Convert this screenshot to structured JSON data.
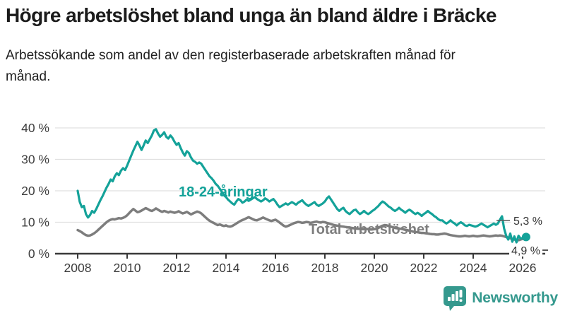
{
  "header": {
    "title": "Högre arbetslöshet bland unga än bland äldre i Bräcke",
    "subtitle": "Arbetssökande som andel av den registerbaserade arbetskraften månad för månad."
  },
  "branding": {
    "name": "Newsworthy",
    "logo_icon": "bar-chart-speech-bubble",
    "color": "#35998e"
  },
  "chart_data": {
    "type": "line",
    "title": "Högre arbetslöshet bland unga än bland äldre i Bräcke",
    "subtitle": "Arbetssökande som andel av den registerbaserade arbetskraften månad för månad.",
    "x_unit": "month",
    "x_start": "2008-01",
    "x_end": "2026-02",
    "x_ticks": [
      "2008",
      "2010",
      "2012",
      "2014",
      "2016",
      "2018",
      "2020",
      "2022",
      "2024",
      "2026"
    ],
    "y_tick_labels_top_down": [
      "40 %",
      "30 %",
      "20 %",
      "10 %",
      "0 %"
    ],
    "ylim": [
      0,
      42
    ],
    "grid": true,
    "legend_position": "inline-labels",
    "series": [
      {
        "name": "18-24-åringar",
        "color": "#14a299",
        "end_label": "5,3 %",
        "end_value": 5.3,
        "values": [
          20.0,
          16.5,
          14.8,
          15.2,
          12.6,
          11.5,
          12.3,
          13.6,
          13.0,
          14.2,
          15.6,
          17.0,
          18.2,
          19.6,
          21.0,
          22.2,
          23.6,
          23.0,
          24.6,
          25.6,
          25.0,
          26.4,
          27.2,
          26.6,
          28.0,
          29.6,
          31.2,
          32.8,
          34.2,
          35.6,
          34.4,
          33.0,
          34.4,
          36.0,
          35.2,
          36.4,
          37.6,
          39.2,
          39.6,
          38.2,
          37.2,
          37.8,
          38.6,
          37.2,
          36.6,
          37.6,
          36.8,
          35.6,
          34.6,
          35.2,
          33.6,
          32.2,
          31.2,
          32.6,
          32.0,
          30.6,
          29.6,
          29.2,
          28.6,
          29.0,
          28.6,
          27.6,
          26.6,
          25.6,
          24.6,
          24.0,
          23.2,
          22.2,
          21.6,
          20.6,
          19.6,
          18.6,
          18.0,
          17.2,
          16.6,
          16.0,
          15.6,
          16.6,
          17.4,
          17.0,
          16.2,
          16.6,
          17.2,
          16.8,
          17.2,
          17.6,
          18.0,
          17.4,
          17.0,
          16.6,
          17.0,
          17.6,
          17.2,
          16.6,
          17.0,
          17.4,
          16.6,
          15.6,
          14.8,
          15.2,
          15.6,
          16.0,
          15.6,
          16.0,
          16.4,
          16.0,
          15.6,
          16.2,
          16.6,
          17.0,
          16.2,
          15.6,
          15.2,
          15.6,
          16.0,
          16.4,
          15.6,
          15.2,
          15.6,
          16.0,
          16.6,
          17.6,
          18.2,
          17.2,
          16.2,
          15.2,
          14.2,
          13.6,
          14.2,
          14.6,
          13.6,
          13.0,
          12.6,
          13.2,
          13.8,
          14.0,
          13.2,
          12.6,
          13.0,
          13.6,
          13.0,
          12.6,
          13.0,
          13.6,
          14.0,
          14.6,
          15.2,
          16.0,
          16.6,
          16.2,
          15.6,
          15.0,
          14.6,
          14.0,
          13.6,
          14.0,
          14.6,
          14.0,
          13.6,
          13.0,
          13.6,
          14.0,
          13.6,
          13.0,
          12.6,
          13.0,
          12.6,
          12.0,
          12.6,
          13.0,
          13.6,
          13.0,
          12.6,
          12.0,
          11.6,
          11.0,
          10.6,
          10.6,
          10.0,
          9.6,
          10.0,
          10.6,
          10.0,
          9.6,
          9.0,
          9.6,
          10.0,
          9.6,
          9.0,
          8.8,
          9.2,
          9.0,
          8.8,
          8.6,
          8.8,
          9.2,
          9.6,
          9.2,
          8.8,
          8.4,
          8.8,
          9.2,
          9.6,
          9.2,
          9.6,
          10.8,
          11.9,
          8.0,
          5.7,
          4.5,
          6.4,
          3.8,
          5.5,
          3.6,
          5.7,
          4.8,
          5.0,
          5.3
        ]
      },
      {
        "name": "Total arbetslöshet",
        "color": "#7d7d7d",
        "end_label": "4,9 %",
        "end_value": 4.9,
        "values": [
          7.5,
          7.2,
          6.8,
          6.3,
          5.9,
          5.7,
          5.8,
          6.1,
          6.5,
          7.0,
          7.6,
          8.2,
          8.8,
          9.4,
          10.0,
          10.5,
          10.8,
          11.0,
          10.9,
          11.1,
          11.3,
          11.2,
          11.4,
          11.7,
          12.2,
          12.9,
          13.6,
          14.2,
          13.7,
          13.2,
          13.4,
          13.7,
          14.1,
          14.5,
          14.2,
          13.8,
          13.6,
          13.9,
          14.4,
          14.0,
          13.6,
          13.3,
          13.6,
          13.4,
          13.1,
          13.4,
          13.2,
          13.0,
          13.2,
          13.5,
          13.1,
          12.8,
          13.0,
          13.3,
          12.9,
          12.5,
          12.8,
          13.1,
          13.4,
          13.2,
          12.8,
          12.2,
          11.6,
          11.0,
          10.5,
          10.1,
          9.8,
          9.4,
          9.1,
          9.3,
          9.0,
          8.8,
          9.0,
          8.7,
          8.6,
          8.8,
          9.2,
          9.6,
          10.0,
          10.4,
          10.7,
          11.0,
          11.3,
          11.6,
          11.3,
          11.0,
          10.7,
          10.6,
          10.9,
          11.2,
          11.5,
          11.2,
          10.9,
          10.6,
          10.4,
          10.6,
          10.8,
          10.4,
          9.9,
          9.4,
          8.9,
          8.6,
          8.8,
          9.1,
          9.4,
          9.7,
          9.9,
          10.1,
          10.0,
          9.8,
          9.9,
          10.1,
          10.0,
          9.8,
          9.9,
          10.1,
          10.2,
          10.0,
          9.9,
          10.1,
          10.0,
          9.8,
          9.6,
          9.4,
          9.2,
          9.0,
          8.9,
          8.8,
          8.7,
          8.6,
          8.5,
          8.4,
          8.3,
          8.2,
          8.1,
          8.0,
          7.9,
          7.9,
          7.8,
          7.8,
          7.9,
          7.8,
          7.7,
          7.7,
          7.8,
          7.9,
          8.2,
          8.6,
          8.9,
          9.1,
          9.0,
          8.8,
          8.6,
          8.4,
          8.2,
          8.1,
          8.0,
          7.9,
          7.8,
          7.6,
          7.5,
          7.3,
          7.2,
          7.0,
          6.9,
          6.8,
          6.7,
          6.6,
          6.6,
          6.5,
          6.4,
          6.3,
          6.2,
          6.2,
          6.1,
          6.1,
          6.2,
          6.3,
          6.4,
          6.3,
          6.1,
          5.9,
          5.8,
          5.7,
          5.6,
          5.5,
          5.5,
          5.6,
          5.7,
          5.6,
          5.5,
          5.6,
          5.7,
          5.6,
          5.5,
          5.6,
          5.7,
          5.8,
          5.7,
          5.6,
          5.5,
          5.6,
          5.7,
          5.8,
          5.7,
          5.8,
          5.7,
          5.5,
          5.3,
          5.1,
          4.9,
          4.7,
          4.5,
          4.4,
          4.3,
          4.5,
          4.7,
          4.9
        ]
      }
    ]
  }
}
